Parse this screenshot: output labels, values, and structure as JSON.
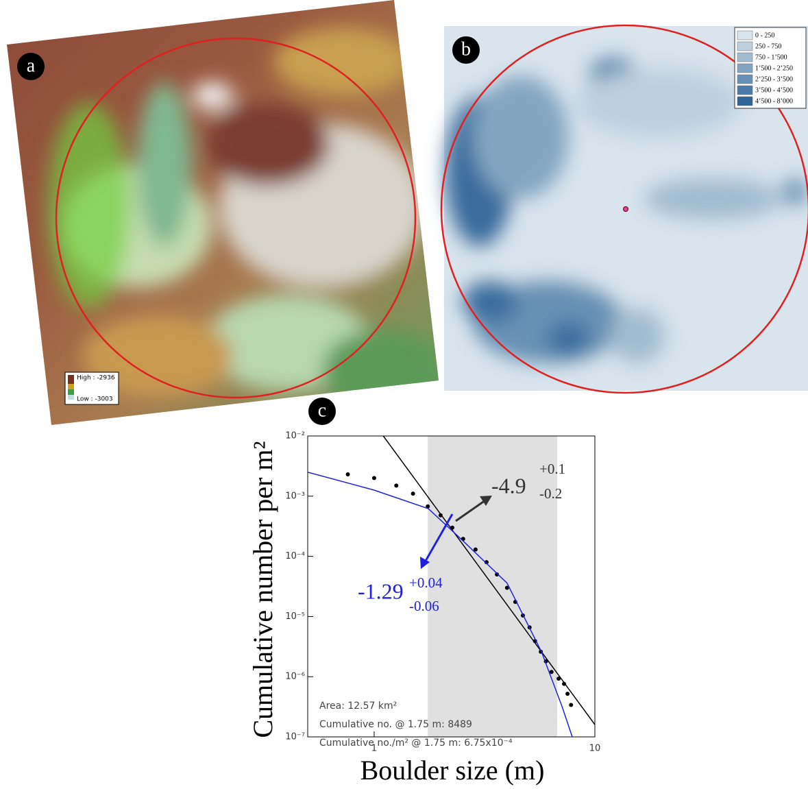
{
  "panel_a": {
    "label": "a",
    "legend": {
      "high": "High : -2936",
      "low": "Low : -3003"
    }
  },
  "panel_b": {
    "label": "b",
    "legend": [
      {
        "label": "0 - 250",
        "color": "#d9e4ec"
      },
      {
        "label": "250 - 750",
        "color": "#bcd0de"
      },
      {
        "label": "750 - 1’500",
        "color": "#a0bcd0"
      },
      {
        "label": "1’500 - 2’250",
        "color": "#82a6c2"
      },
      {
        "label": "2’250 - 3’500",
        "color": "#6690b4"
      },
      {
        "label": "3’500 - 4’500",
        "color": "#4a7aa6"
      },
      {
        "label": "4’500 - 8’000",
        "color": "#2f6496"
      }
    ]
  },
  "chart_data": {
    "type": "scatter",
    "panel_label": "c",
    "xlabel": "Boulder size (m)",
    "ylabel": "Cumulative number per m²",
    "xscale": "log",
    "yscale": "log",
    "xlim": [
      0.5,
      10
    ],
    "ylim": [
      1e-07,
      0.01
    ],
    "xticks": [
      1,
      10
    ],
    "yticks": [
      {
        "value": 1e-07,
        "label": "10⁻⁷"
      },
      {
        "value": 1e-06,
        "label": "10⁻⁶"
      },
      {
        "value": 1e-05,
        "label": "10⁻⁵"
      },
      {
        "value": 0.0001,
        "label": "10⁻⁴"
      },
      {
        "value": 0.001,
        "label": "10⁻³"
      },
      {
        "value": 0.01,
        "label": "10⁻²"
      }
    ],
    "shaded_range": [
      1.75,
      6.75
    ],
    "series": [
      {
        "type": "scatter",
        "color": "#000000",
        "x": [
          0.76,
          1.0,
          1.26,
          1.5,
          1.75,
          2.0,
          2.26,
          2.53,
          2.88,
          3.23,
          3.6,
          4.0,
          4.36,
          4.72,
          5.06,
          5.36,
          5.69,
          6.0,
          6.36,
          6.85,
          7.25,
          7.52,
          7.8
        ],
        "values": [
          0.0023,
          0.002,
          0.0015,
          0.0011,
          0.000675,
          0.00048,
          0.0003,
          0.000195,
          0.00013,
          8e-05,
          5e-05,
          3e-05,
          1.75e-05,
          1.04e-05,
          6.6e-06,
          3.9e-06,
          2.6e-06,
          1.8e-06,
          1.2e-06,
          9.3e-07,
          7.6e-07,
          5.2e-07,
          3.4e-07
        ]
      },
      {
        "type": "line",
        "color": "#000000",
        "x": [
          1.1,
          10
        ],
        "values": [
          0.01,
          1.6e-07
        ]
      },
      {
        "type": "line",
        "color": "#2020e0",
        "x": [
          0.5,
          1.0,
          1.76,
          2.53,
          4.0,
          5.73,
          7.1,
          7.9
        ],
        "values": [
          0.0025,
          0.00126,
          0.00062,
          0.00018,
          3.6e-05,
          2.6e-06,
          3.2e-07,
          1e-07
        ]
      }
    ],
    "annotations": [
      {
        "text": "-4.9",
        "upper": "+0.1",
        "lower": "-0.2",
        "color": "#333333"
      },
      {
        "text": "-1.29",
        "upper": "+0.04",
        "lower": "-0.06",
        "color": "#2020e0"
      }
    ],
    "info_lines": [
      "Area: 12.57 km²",
      "Cumulative no. @ 1.75 m: 8489",
      "Cumulative no./m² @ 1.75 m: 6.75x10⁻⁴"
    ]
  }
}
